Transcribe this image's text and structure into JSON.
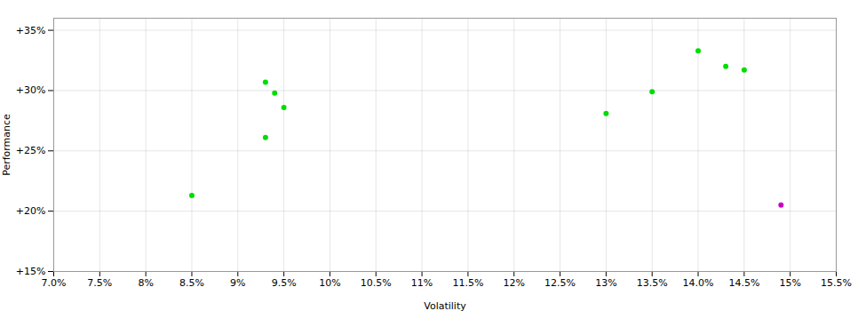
{
  "chart_data": {
    "type": "scatter",
    "xlabel": "Volatility",
    "ylabel": "Performance",
    "series": [
      {
        "color": "#00dd00",
        "x": [
          0.085,
          0.093,
          0.094,
          0.095,
          0.093,
          0.13,
          0.135,
          0.14,
          0.143,
          0.145
        ],
        "y": [
          0.213,
          0.307,
          0.298,
          0.286,
          0.261,
          0.281,
          0.299,
          0.333,
          0.32,
          0.317
        ]
      },
      {
        "color": "#cc00cc",
        "x": [
          0.149
        ],
        "y": [
          0.205
        ]
      }
    ],
    "xlim": [
      0.07,
      0.155
    ],
    "ylim": [
      0.15,
      0.36
    ],
    "xticks": [
      {
        "value": 0.07,
        "label": "7.0%"
      },
      {
        "value": 0.075,
        "label": "7.5%"
      },
      {
        "value": 0.08,
        "label": "8%"
      },
      {
        "value": 0.085,
        "label": "8.5%"
      },
      {
        "value": 0.09,
        "label": "9%"
      },
      {
        "value": 0.095,
        "label": "9.5%"
      },
      {
        "value": 0.1,
        "label": "10%"
      },
      {
        "value": 0.105,
        "label": "10.5%"
      },
      {
        "value": 0.11,
        "label": "11%"
      },
      {
        "value": 0.115,
        "label": "11.5%"
      },
      {
        "value": 0.12,
        "label": "12%"
      },
      {
        "value": 0.125,
        "label": "12.5%"
      },
      {
        "value": 0.13,
        "label": "13%"
      },
      {
        "value": 0.135,
        "label": "13.5%"
      },
      {
        "value": 0.14,
        "label": "14.0%"
      },
      {
        "value": 0.145,
        "label": "14.5%"
      },
      {
        "value": 0.15,
        "label": "15%"
      },
      {
        "value": 0.155,
        "label": "15.5%"
      }
    ],
    "yticks": [
      {
        "value": 0.15,
        "label": "+15%"
      },
      {
        "value": 0.2,
        "label": "+20%"
      },
      {
        "value": 0.25,
        "label": "+25%"
      },
      {
        "value": 0.3,
        "label": "+30%"
      },
      {
        "value": 0.35,
        "label": "+35%"
      }
    ],
    "grid": true
  }
}
